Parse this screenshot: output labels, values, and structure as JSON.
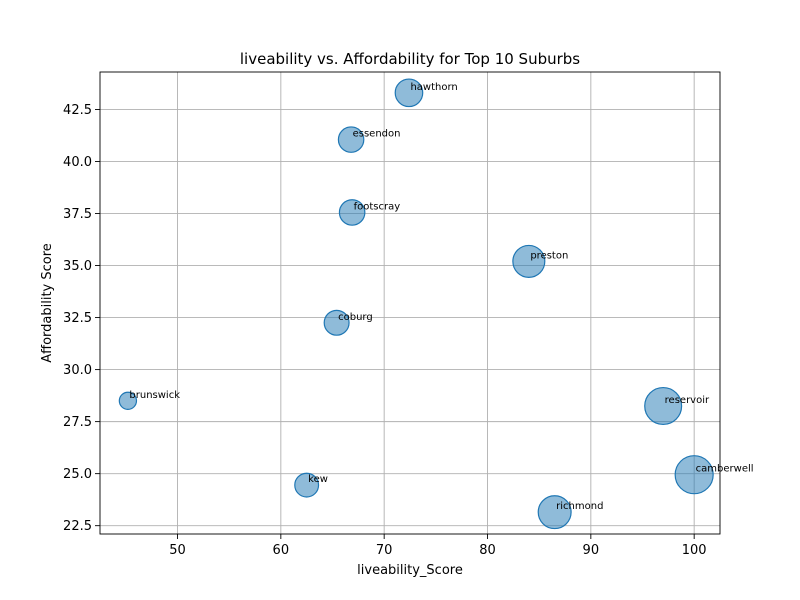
{
  "chart_data": {
    "type": "scatter",
    "title": "liveability vs. Affordability for Top 10 Suburbs",
    "xlabel": "liveability_Score",
    "ylabel": "Affordability Score",
    "xlim": [
      42.5,
      102.5
    ],
    "ylim": [
      22.1,
      44.3
    ],
    "xticks": [
      50,
      60,
      70,
      80,
      90,
      100
    ],
    "xtick_labels": [
      "50",
      "60",
      "70",
      "80",
      "90",
      "100"
    ],
    "yticks": [
      22.5,
      25.0,
      27.5,
      30.0,
      32.5,
      35.0,
      37.5,
      40.0,
      42.5
    ],
    "ytick_labels": [
      "22.5",
      "25.0",
      "27.5",
      "30.0",
      "32.5",
      "35.0",
      "37.5",
      "40.0",
      "42.5"
    ],
    "grid": true,
    "marker_color": "#1f77b4",
    "marker_alpha": 0.5,
    "points": [
      {
        "label": "hawthorn",
        "x": 72.4,
        "y": 43.3,
        "size": 72.4
      },
      {
        "label": "essendon",
        "x": 66.8,
        "y": 41.05,
        "size": 66.8
      },
      {
        "label": "footscray",
        "x": 66.9,
        "y": 37.55,
        "size": 66.9
      },
      {
        "label": "preston",
        "x": 84.0,
        "y": 35.2,
        "size": 84.0
      },
      {
        "label": "coburg",
        "x": 65.4,
        "y": 32.25,
        "size": 65.4
      },
      {
        "label": "brunswick",
        "x": 45.2,
        "y": 28.5,
        "size": 45.2
      },
      {
        "label": "reservoir",
        "x": 97.0,
        "y": 28.25,
        "size": 97.0
      },
      {
        "label": "camberwell",
        "x": 100.0,
        "y": 24.95,
        "size": 100.0
      },
      {
        "label": "kew",
        "x": 62.5,
        "y": 24.45,
        "size": 62.5
      },
      {
        "label": "richmond",
        "x": 86.5,
        "y": 23.15,
        "size": 86.5
      }
    ]
  }
}
